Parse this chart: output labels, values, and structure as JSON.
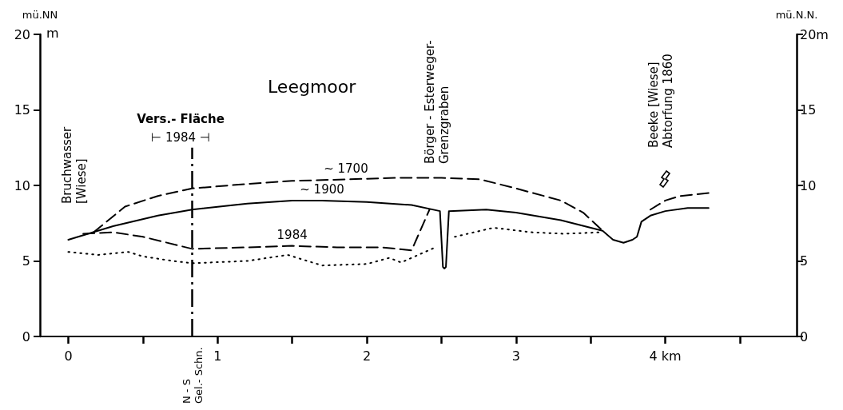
{
  "chart_data": {
    "type": "line",
    "title": "Leegmoor",
    "ylabel": "mü.NN",
    "y2label": "mü.N.N.",
    "xlim": [
      -0.19,
      4.88
    ],
    "xticks": [
      0,
      {
        "value": 0.5,
        "label": null
      },
      1,
      {
        "value": 1.5,
        "label": null
      },
      2,
      {
        "value": 2.5,
        "label": null
      },
      3,
      {
        "value": 3.5,
        "label": null
      },
      {
        "value": 4,
        "label": "4 km"
      },
      {
        "value": 4.5,
        "label": null
      }
    ],
    "ylim": [
      0,
      20
    ],
    "yticks": [
      0,
      5,
      10,
      15,
      20
    ],
    "y2lim": [
      0,
      20
    ],
    "y2ticks": [
      0,
      5,
      10,
      15,
      {
        "value": 20,
        "label": "20m"
      }
    ],
    "grid": false,
    "legend": false,
    "marker": "none",
    "series": [
      {
        "name": "~ 1700",
        "color": "#000000",
        "line_style": "dashed",
        "x": [
          0.17,
          0.38,
          0.6,
          0.83,
          1.2,
          1.5,
          1.86,
          2.2,
          2.5,
          2.76,
          3.0,
          3.3,
          3.45,
          3.58,
          3.75,
          3.9,
          4.0,
          4.1,
          4.29
        ],
        "values": [
          6.9,
          8.6,
          9.3,
          9.8,
          10.1,
          10.3,
          10.4,
          10.5,
          10.5,
          10.4,
          9.8,
          9.0,
          8.2,
          7.0,
          null,
          8.4,
          9.0,
          9.3,
          9.5
        ]
      },
      {
        "name": "~ 1900",
        "color": "#000000",
        "line_style": "solid",
        "x": [
          0,
          0.3,
          0.6,
          0.83,
          1.2,
          1.5,
          1.7,
          2.0,
          2.3,
          2.49,
          2.51,
          2.52,
          2.53,
          2.55,
          2.8,
          3.0,
          3.3,
          3.58,
          3.65,
          3.72,
          3.78,
          3.81,
          3.84,
          3.9,
          4.0,
          4.15,
          4.29
        ],
        "values": [
          6.4,
          7.3,
          8.0,
          8.4,
          8.8,
          9.0,
          9.0,
          8.9,
          8.7,
          8.3,
          4.6,
          4.5,
          4.6,
          8.3,
          8.4,
          8.2,
          7.7,
          7.0,
          6.4,
          6.2,
          6.4,
          6.6,
          7.6,
          8.0,
          8.3,
          8.5,
          8.5
        ]
      },
      {
        "name": "1984",
        "color": "#000000",
        "line_style": "dashed",
        "x": [
          0.1,
          0.3,
          0.5,
          0.83,
          1.2,
          1.5,
          1.8,
          2.1,
          2.3,
          2.42
        ],
        "values": [
          6.8,
          6.9,
          6.6,
          5.8,
          5.9,
          6.0,
          5.9,
          5.9,
          5.7,
          8.4
        ]
      },
      {
        "color": "#000000",
        "line_style": "dotted",
        "x": [
          0,
          0.2,
          0.4,
          0.5,
          0.7,
          0.83,
          1.2,
          1.47,
          1.7,
          2.0,
          2.15,
          2.23,
          2.46,
          2.52,
          2.59,
          2.85,
          3.1,
          3.32,
          3.58
        ],
        "values": [
          5.6,
          5.4,
          5.6,
          5.3,
          5.0,
          4.85,
          5.0,
          5.4,
          4.7,
          4.8,
          5.2,
          4.9,
          5.9,
          null,
          6.6,
          7.2,
          6.9,
          6.8,
          6.9
        ]
      }
    ],
    "ref_lines": [
      {
        "axis": "x",
        "value": 0.83,
        "label": "N - S\nGel.- Schn.",
        "line_style": "dashed",
        "color": "#000000"
      }
    ],
    "annotations": [
      "Bruchwasser\n[Wiese]",
      "Vers.- Fläche",
      "⊢ 1984 ⊣",
      "Börger - Esterweger-\nGrenzgraben",
      "Beeke [Wiese]\nAbtorfung 1860",
      "m"
    ]
  }
}
